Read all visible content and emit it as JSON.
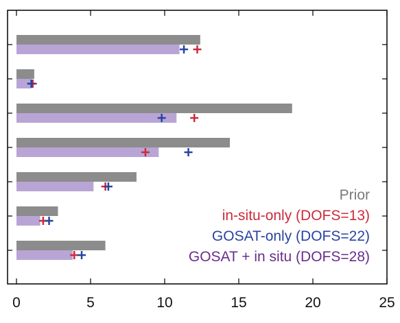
{
  "chart_data": {
    "type": "bar",
    "orientation": "horizontal",
    "xlim": [
      0,
      25
    ],
    "x_ticks": [
      0,
      5,
      10,
      15,
      20,
      25
    ],
    "x_tick_labels": [
      "0",
      "5",
      "10",
      "15",
      "20",
      "25"
    ],
    "rows": 7,
    "series": [
      {
        "name": "Prior",
        "kind": "bar",
        "color": "#8c8c8c",
        "values": [
          12.4,
          1.2,
          18.6,
          14.4,
          8.1,
          2.8,
          6.0
        ]
      },
      {
        "name": "",
        "kind": "bar",
        "color": "#b8a5d6",
        "values": [
          11.0,
          1.0,
          10.8,
          9.6,
          5.2,
          1.6,
          3.8
        ]
      },
      {
        "name": "in-situ-only (DOFS=13)",
        "kind": "marker",
        "color": "#cc2a3a",
        "values": [
          12.2,
          1.1,
          12.0,
          8.7,
          6.0,
          1.8,
          3.9
        ]
      },
      {
        "name": "GOSAT-only (DOFS=22)",
        "kind": "marker",
        "color": "#2a43a0",
        "values": [
          11.3,
          1.0,
          9.8,
          11.6,
          6.2,
          2.2,
          4.4
        ]
      }
    ],
    "legend": {
      "placement": "bottom-right",
      "entries": [
        {
          "label": "Prior",
          "color": "#7a7a7a"
        },
        {
          "label": "in-situ-only (DOFS=13)",
          "color": "#cc2a3a"
        },
        {
          "label": "GOSAT-only (DOFS=22)",
          "color": "#2a43a0"
        },
        {
          "label": "GOSAT + in situ (DOFS=28)",
          "color": "#6a2c8c"
        }
      ]
    }
  }
}
